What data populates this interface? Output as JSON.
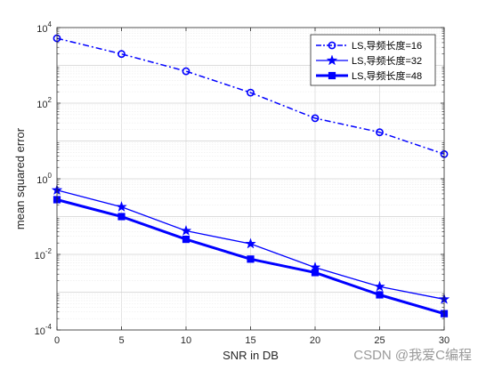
{
  "chart_data": {
    "type": "line",
    "xlabel": "SNR in DB",
    "ylabel": "mean squared error",
    "x": [
      0,
      5,
      10,
      15,
      20,
      25,
      30
    ],
    "xlim": [
      0,
      30
    ],
    "xticks": [
      "0",
      "5",
      "10",
      "15",
      "20",
      "25",
      "30"
    ],
    "yscale": "log",
    "ylim": [
      0.0001,
      10000
    ],
    "yticks": [
      {
        "base": "10",
        "exp": "4",
        "value": 10000
      },
      {
        "base": "10",
        "exp": "2",
        "value": 100
      },
      {
        "base": "10",
        "exp": "0",
        "value": 1
      },
      {
        "base": "10",
        "exp": "-2",
        "value": 0.01
      },
      {
        "base": "10",
        "exp": "-4",
        "value": 0.0001
      }
    ],
    "grid": true,
    "legend_position": "top-right",
    "series": [
      {
        "name": "LS,导频长度=16",
        "values": [
          5200,
          2000,
          700,
          190,
          40,
          17,
          4.5
        ],
        "color": "#0000ff",
        "line": "dash-dot",
        "marker": "circle",
        "width": 1.5
      },
      {
        "name": "LS,导频长度=32",
        "values": [
          0.5,
          0.18,
          0.042,
          0.019,
          0.0045,
          0.0014,
          0.00065
        ],
        "color": "#0000ff",
        "line": "solid",
        "marker": "star",
        "width": 1.3
      },
      {
        "name": "LS,导频长度=48",
        "values": [
          0.28,
          0.1,
          0.025,
          0.0075,
          0.0033,
          0.00085,
          0.00027
        ],
        "color": "#0000ff",
        "line": "solid",
        "marker": "square",
        "width": 3
      }
    ]
  },
  "watermark": "CSDN @我爱C编程"
}
